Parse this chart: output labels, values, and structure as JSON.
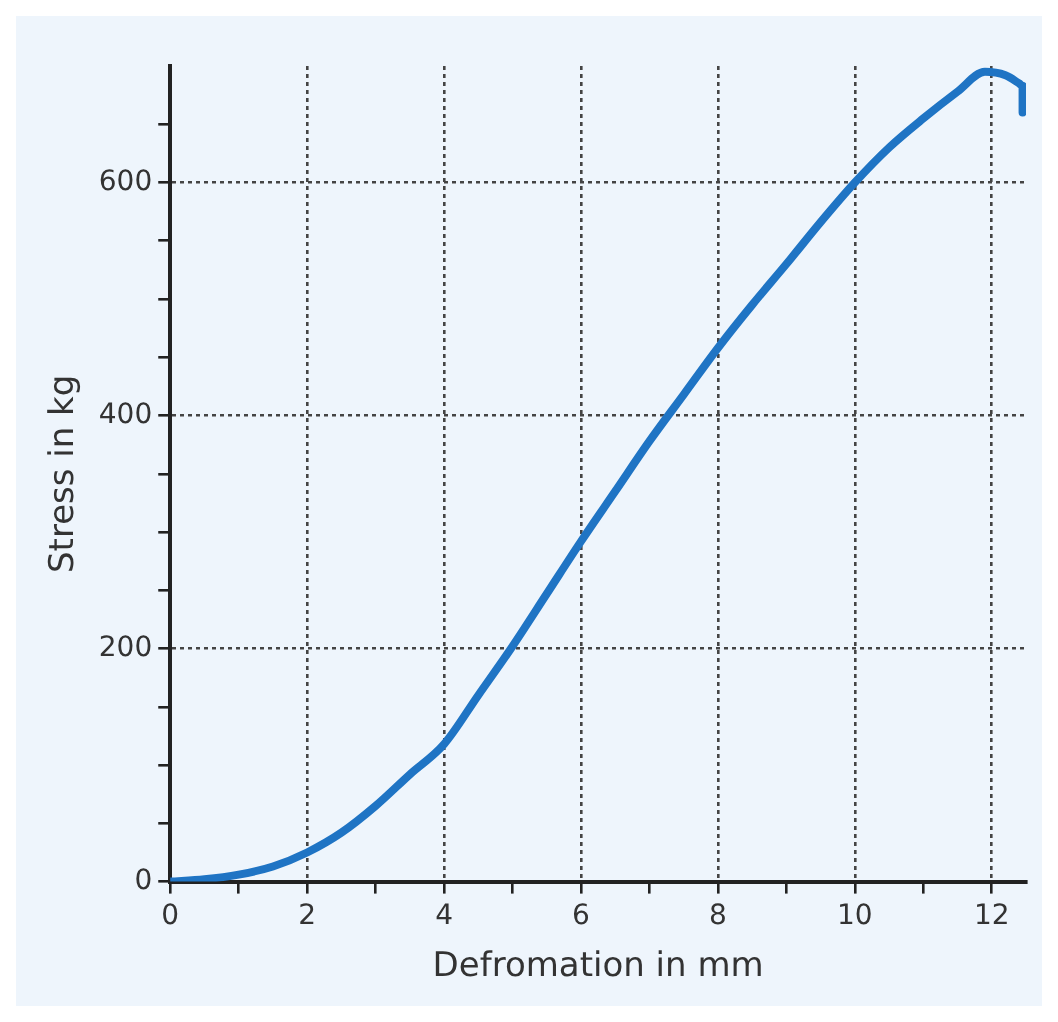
{
  "chart_data": {
    "type": "line",
    "xlabel": "Defromation in mm",
    "ylabel": "Stress in kg",
    "x": [
      0,
      0.5,
      1,
      1.5,
      2,
      2.5,
      3,
      3.5,
      4,
      4.5,
      5,
      5.5,
      6,
      6.5,
      7,
      7.5,
      8,
      8.5,
      9,
      9.5,
      10,
      10.5,
      11,
      11.5,
      11.9,
      12.2,
      12.4,
      12.45,
      12.45
    ],
    "series": [
      {
        "color": "#1f74c4",
        "values": [
          0,
          2,
          6,
          13,
          25,
          42,
          65,
          92,
          118,
          160,
          202,
          247,
          292,
          335,
          378,
          418,
          458,
          495,
          530,
          566,
          600,
          630,
          655,
          678,
          695,
          692,
          685,
          683,
          660
        ]
      }
    ],
    "xlim": [
      0,
      12.5
    ],
    "ylim": [
      0,
      700
    ],
    "xticks": [
      0,
      {
        "value": 1,
        "label": null
      },
      2,
      {
        "value": 3,
        "label": null
      },
      4,
      {
        "value": 5,
        "label": null
      },
      6,
      {
        "value": 7,
        "label": null
      },
      8,
      {
        "value": 9,
        "label": null
      },
      10,
      {
        "value": 11,
        "label": null
      },
      12
    ],
    "yticks": [
      0,
      {
        "value": 50,
        "label": null
      },
      {
        "value": 100,
        "label": null
      },
      {
        "value": 150,
        "label": null
      },
      200,
      {
        "value": 250,
        "label": null
      },
      {
        "value": 300,
        "label": null
      },
      {
        "value": 350,
        "label": null
      },
      400,
      {
        "value": 450,
        "label": null
      },
      {
        "value": 500,
        "label": null
      },
      {
        "value": 550,
        "label": null
      },
      600,
      {
        "value": 650,
        "label": null
      }
    ],
    "grid": true,
    "legend": false,
    "marker": "none",
    "line_style": "solid"
  }
}
